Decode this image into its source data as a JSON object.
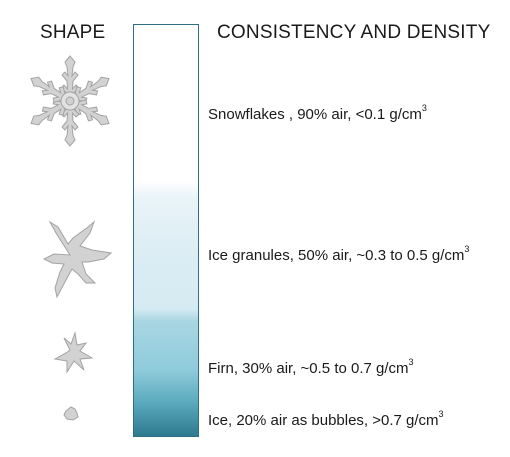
{
  "headers": {
    "shape": "SHAPE",
    "density": "CONSISTENCY AND DENSITY"
  },
  "stages": [
    {
      "text": "Snowflakes , 90% air, <0.1 g/cm",
      "unit_superscript": "3",
      "icon": "snowflake-icon"
    },
    {
      "text": "Ice granules, 50% air, ~0.3 to 0.5 g/cm",
      "unit_superscript": "3",
      "icon": "ice-granule-icon"
    },
    {
      "text": "Firn, 30% air, ~0.5 to 0.7 g/cm",
      "unit_superscript": "3",
      "icon": "firn-icon"
    },
    {
      "text": "Ice, 20% air as bubbles, >0.7 g/cm",
      "unit_superscript": "3",
      "icon": "ice-icon"
    }
  ],
  "colors": {
    "column_border": "#2f6e84",
    "column_top": "#ffffff",
    "column_bottom": "#2e7a8f",
    "shape_fill": "#d2d2d2",
    "shape_stroke": "#a3a3a3"
  }
}
